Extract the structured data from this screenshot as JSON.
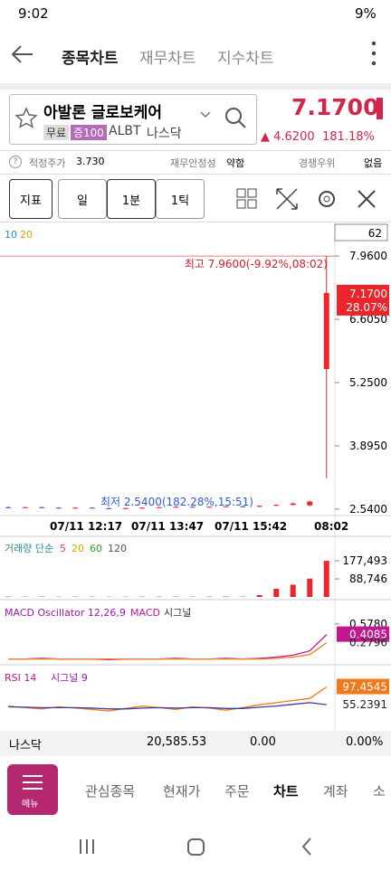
{
  "status_bar": {
    "time": "9:02",
    "battery": "9%"
  },
  "nav": {
    "tabs": [
      "종목차트",
      "재무차트",
      "지수차트"
    ]
  },
  "stock": {
    "name": "아발론 글로보케어",
    "tags": [
      "무료",
      "증100"
    ],
    "ticker": "ALBT",
    "exchange": "나스닥",
    "price": "7.1700",
    "change": "▲ 4.6200",
    "change_pct": "181.18%"
  },
  "info": [
    {
      "label": "적정주가",
      "value": "3.730"
    },
    {
      "label": "재무안정성",
      "value": "약함"
    },
    {
      "label": "경쟁우위",
      "value": "없음"
    }
  ],
  "toolbar": [
    "지표",
    "일",
    "1분",
    "1틱"
  ],
  "price_chart": {
    "type": "candlestick",
    "ma_labels": [
      "10",
      "20"
    ],
    "count": "62",
    "ylim": [
      2.44,
      8.64
    ],
    "yticks": [
      {
        "value": 7.96,
        "label": "7.9600"
      },
      {
        "value": 6.605,
        "label": "6.6050"
      },
      {
        "value": 5.25,
        "label": "5.2500"
      },
      {
        "value": 3.895,
        "label": "3.8950"
      },
      {
        "value": 2.54,
        "label": "2.5400"
      }
    ],
    "last": {
      "value": 7.17,
      "label": "7.1700"
    },
    "last_pct": "28.07%",
    "high_note": "최고 7.9600(-9.92%,08:02)",
    "low_note": "최저 2.5400(182.28%,15:51)",
    "x_labels": [
      "07/11 12:17",
      "07/11 13:47",
      "07/11 15:42",
      "08:02"
    ],
    "up_color": "#e8262b",
    "down_color": "#2d5ccf",
    "candles": [
      [
        2.58,
        2.6,
        2.56,
        2.57
      ],
      [
        2.57,
        2.59,
        2.56,
        2.58
      ],
      [
        2.58,
        2.6,
        2.57,
        2.57
      ],
      [
        2.57,
        2.58,
        2.55,
        2.56
      ],
      [
        2.56,
        2.58,
        2.55,
        2.57
      ],
      [
        2.57,
        2.58,
        2.56,
        2.56
      ],
      [
        2.56,
        2.57,
        2.54,
        2.55
      ],
      [
        2.55,
        2.57,
        2.54,
        2.56
      ],
      [
        2.56,
        2.58,
        2.55,
        2.57
      ],
      [
        2.57,
        2.59,
        2.56,
        2.58
      ],
      [
        2.58,
        2.6,
        2.57,
        2.59
      ],
      [
        2.59,
        2.6,
        2.57,
        2.58
      ],
      [
        2.58,
        2.6,
        2.57,
        2.59
      ],
      [
        2.59,
        2.61,
        2.58,
        2.6
      ],
      [
        2.6,
        2.61,
        2.58,
        2.59
      ],
      [
        2.59,
        2.62,
        2.58,
        2.61
      ],
      [
        2.61,
        2.64,
        2.6,
        2.63
      ],
      [
        2.63,
        2.68,
        2.62,
        2.66
      ],
      [
        2.62,
        2.72,
        2.6,
        2.7
      ],
      [
        5.54,
        7.96,
        3.2,
        7.17
      ]
    ]
  },
  "volume_chart": {
    "type": "bar",
    "title": "거래량 단순",
    "ma_labels": [
      {
        "text": "5",
        "color": "#e04848"
      },
      {
        "text": "20",
        "color": "#e0a000"
      },
      {
        "text": "60",
        "color": "#2aa02a"
      },
      {
        "text": "120",
        "color": "#555555"
      }
    ],
    "ylim": [
      0,
      200000
    ],
    "yticks": [
      {
        "value": 177493,
        "label": "177,493"
      },
      {
        "value": 88746,
        "label": "88,746"
      }
    ],
    "color": "#e8262b",
    "values": [
      2000,
      1500,
      1800,
      1200,
      1600,
      1400,
      1100,
      1300,
      1500,
      1700,
      1900,
      1600,
      1800,
      2100,
      1700,
      9000,
      40000,
      60000,
      90000,
      177493
    ]
  },
  "macd_chart": {
    "type": "line",
    "title": "MACD Oscillator 12,26,9",
    "ylim": [
      0,
      0.72
    ],
    "yticks": [
      {
        "value": 0.578,
        "label": "0.5780"
      }
    ],
    "series": [
      {
        "name": "MACD",
        "color": "#c2178f",
        "values": [
          0.02,
          0.02,
          0.03,
          0.02,
          0.02,
          0.02,
          0.01,
          0.02,
          0.02,
          0.02,
          0.03,
          0.02,
          0.02,
          0.03,
          0.02,
          0.03,
          0.05,
          0.08,
          0.15,
          0.4085
        ]
      },
      {
        "name": "시그널",
        "color": "#f07a1a",
        "values": [
          0.02,
          0.02,
          0.02,
          0.02,
          0.02,
          0.02,
          0.02,
          0.02,
          0.02,
          0.02,
          0.02,
          0.02,
          0.02,
          0.02,
          0.02,
          0.02,
          0.03,
          0.05,
          0.09,
          0.2796
        ]
      }
    ]
  },
  "rsi_chart": {
    "type": "line",
    "title": "RSI 14",
    "signal_label": "시그널 9",
    "ylim": [
      10,
      118
    ],
    "series": [
      {
        "name": "RSI",
        "color": "#f07a1a",
        "values": [
          52,
          48,
          45,
          50,
          47,
          44,
          40,
          46,
          52,
          48,
          44,
          50,
          47,
          42,
          48,
          55,
          60,
          65,
          70,
          97.4545
        ]
      },
      {
        "name": "시그널",
        "color": "#3a3aa0",
        "values": [
          50,
          49,
          48,
          48,
          48,
          47,
          45,
          45,
          47,
          48,
          47,
          48,
          48,
          46,
          46,
          49,
          52,
          56,
          60,
          55.2391
        ]
      }
    ]
  },
  "index_bar": {
    "name": "나스닥",
    "value": "20,585.53",
    "change": "0.00",
    "pct": "0.00%"
  },
  "bottom_nav": {
    "menu": "메뉴",
    "items": [
      "관심종목",
      "현재가",
      "주문",
      "차트",
      "계좌",
      "소"
    ]
  }
}
